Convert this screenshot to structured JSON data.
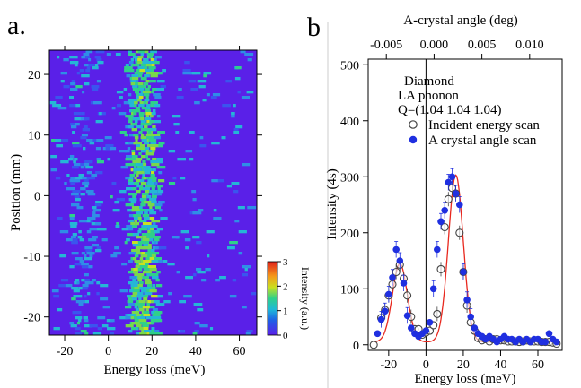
{
  "panel_a": {
    "label": "a.",
    "xlabel": "Energy loss (meV)",
    "ylabel": "Position (mm)",
    "xticks": [
      "-20",
      "0",
      "20",
      "40",
      "60"
    ],
    "yticks": [
      "20",
      "10",
      "0",
      "-10",
      "-20"
    ],
    "colorbar_label": "Intensity (a.u.)",
    "colorbar_ticks": [
      "3",
      "2",
      "1",
      "0"
    ]
  },
  "panel_b": {
    "label": "b",
    "xlabel": "Energy loss (meV)",
    "ylabel": "Intensity (4s)",
    "top_axis_label": "A-crystal angle (deg)",
    "xticks": [
      "-20",
      "0",
      "20",
      "40",
      "60"
    ],
    "top_ticks": [
      "-0.005",
      "0.000",
      "0.005",
      "0.010"
    ],
    "yticks": [
      "500",
      "400",
      "300",
      "200",
      "100",
      "0"
    ],
    "annotation": [
      "Diamond",
      "LA phonon",
      "Q=(1.04 1.04 1.04)"
    ],
    "legend": [
      "Incident energy scan",
      "A crystal angle scan"
    ]
  },
  "colors": {
    "heatmap_background": "#5a20e8",
    "open_marker": "#444444",
    "filled_marker": "#1f2fe0",
    "fit_line": "#e8281e"
  },
  "chart_data": [
    {
      "type": "heatmap",
      "x_range": [
        -27,
        68
      ],
      "y_range": [
        -23,
        24
      ],
      "colorbar_range": [
        0,
        3
      ],
      "hot_band_x_range": [
        10,
        20
      ],
      "weak_band_x_range": [
        -18,
        -5
      ]
    },
    {
      "type": "scatter",
      "xlim": [
        -31,
        73
      ],
      "ylim": [
        -10,
        510
      ],
      "top_axis_range": [
        -0.0069,
        0.0134
      ],
      "series": [
        {
          "name": "Incident energy scan",
          "x": [
            -28,
            -24,
            -22,
            -20,
            -18,
            -16,
            -14,
            -12,
            -10,
            -8,
            -6,
            -4,
            -2,
            0,
            2,
            4,
            6,
            8,
            10,
            12,
            14,
            16,
            18,
            20,
            22,
            24,
            26,
            28,
            30,
            32,
            34,
            36,
            38,
            40,
            42,
            44,
            46,
            48,
            50,
            52,
            54,
            56,
            58,
            60,
            62,
            64,
            66,
            68,
            70
          ],
          "y": [
            0,
            48,
            62,
            88,
            108,
            130,
            143,
            118,
            88,
            50,
            28,
            28,
            18,
            22,
            25,
            35,
            55,
            135,
            210,
            260,
            280,
            270,
            200,
            130,
            70,
            40,
            25,
            12,
            8,
            10,
            6,
            10,
            10,
            8,
            8,
            6,
            6,
            6,
            5,
            6,
            8,
            6,
            6,
            6,
            5,
            5,
            5,
            4,
            2
          ]
        },
        {
          "name": "A crystal angle scan",
          "x": [
            -26,
            -24,
            -22,
            -20,
            -18,
            -16,
            -14,
            -12,
            -10,
            -8,
            -6,
            -4,
            -2,
            0,
            2,
            4,
            6,
            8,
            10,
            12,
            14,
            16,
            18,
            20,
            22,
            24,
            26,
            28,
            30,
            32,
            34,
            36,
            38,
            40,
            42,
            44,
            46,
            48,
            50,
            52,
            54,
            56,
            58,
            60,
            62,
            64,
            66,
            68,
            70
          ],
          "y": [
            20,
            45,
            60,
            90,
            120,
            170,
            150,
            110,
            52,
            30,
            20,
            15,
            20,
            25,
            40,
            100,
            170,
            220,
            240,
            290,
            300,
            270,
            250,
            130,
            80,
            50,
            30,
            20,
            15,
            10,
            15,
            10,
            5,
            10,
            15,
            10,
            10,
            5,
            10,
            5,
            10,
            5,
            10,
            10,
            5,
            5,
            20,
            10,
            5
          ]
        },
        {
          "name": "fit",
          "type": "line",
          "peaks": [
            {
              "center": -14,
              "height": 140,
              "width": 4
            },
            {
              "center": 16,
              "height": 298,
              "width": 4
            }
          ],
          "baseline": 5
        }
      ]
    }
  ]
}
